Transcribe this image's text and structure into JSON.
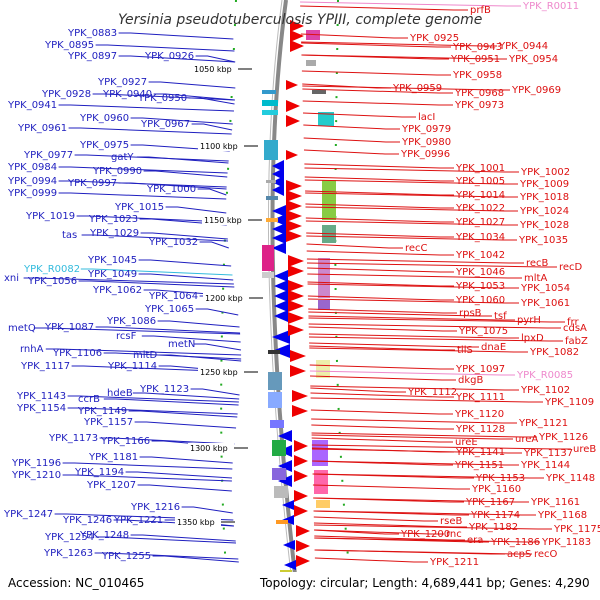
{
  "header": {
    "title": "Yersinia pseudotuberculosis YPIII, complete genome"
  },
  "footer": {
    "accession": "Accession: NC_010465",
    "topology": "Topology: circular; Length: 4,689,441 bp; Genes: 4,290"
  },
  "colors": {
    "left_label": "#1f1fbf",
    "left_arrow": "#0000ee",
    "left_rna": "#33bbdd",
    "right_label": "#dd1111",
    "right_arrow": "#ee0000",
    "right_rna": "#ee88cc",
    "backbone": "#888888"
  },
  "ruler": {
    "ticks": [
      {
        "label": "1050 kbp"
      },
      {
        "label": "1100 kbp"
      },
      {
        "label": "1150 kbp"
      },
      {
        "label": "1200 kbp"
      },
      {
        "label": "1250 kbp"
      },
      {
        "label": "1300 kbp"
      },
      {
        "label": "1350 kbp"
      }
    ]
  },
  "left_genes": [
    "YPK_0883",
    "YPK_0895",
    "YPK_0897",
    "YPK_0926",
    "YPK_0927",
    "YPK_0928",
    "YPK_0940",
    "YPK_0941",
    "YPK_0950",
    "YPK_0960",
    "YPK_0961",
    "YPK_0967",
    "YPK_0975",
    "YPK_0977",
    "gatY",
    "YPK_0984",
    "YPK_0990",
    "YPK_0994",
    "YPK_0997",
    "YPK_0999",
    "YPK_1000",
    "YPK_1015",
    "YPK_1019",
    "YPK_1023",
    "tas",
    "YPK_1029",
    "YPK_1032",
    "YPK_1045",
    "YPK_R0082",
    "YPK_1049",
    "xni",
    "YPK_1056",
    "YPK_1062",
    "YPK_1064",
    "YPK_1065",
    "YPK_1086",
    "metQ",
    "YPK_1087",
    "rcsF",
    "metN",
    "mltD",
    "rnhA",
    "YPK_1106",
    "YPK_1114",
    "YPK_1117",
    "YPK_1123",
    "YPK_1143",
    "ccrB",
    "hdeB",
    "YPK_1154",
    "YPK_1149",
    "YPK_1157",
    "YPK_1166",
    "YPK_1173",
    "YPK_1181",
    "YPK_1196",
    "YPK_1194",
    "YPK_1210",
    "YPK_1207",
    "YPK_1216",
    "YPK_1247",
    "YPK_1246",
    "YPK_1221",
    "YPK_1248",
    "YPK_1254",
    "YPK_1263",
    "YPK_1255"
  ],
  "right_genes": [
    "prfB",
    "YPK_R0011",
    "YPK_0925",
    "YPK_0943",
    "YPK_0944",
    "YPK_0951",
    "YPK_0954",
    "YPK_0958",
    "YPK_0959",
    "YPK_0968",
    "YPK_0969",
    "YPK_0973",
    "lacI",
    "YPK_0979",
    "YPK_0980",
    "YPK_0996",
    "YPK_1001",
    "YPK_1002",
    "YPK_1005",
    "YPK_1009",
    "YPK_1014",
    "YPK_1018",
    "YPK_1022",
    "YPK_1024",
    "YPK_1027",
    "YPK_1028",
    "YPK_1034",
    "YPK_1035",
    "recC",
    "YPK_1042",
    "recB",
    "recD",
    "YPK_1046",
    "mltA",
    "YPK_1053",
    "YPK_1054",
    "YPK_1060",
    "YPK_1061",
    "rpsB",
    "tsf",
    "pyrH",
    "frr",
    "cdsA",
    "YPK_1075",
    "lpxD",
    "fabZ",
    "tilS",
    "dnaE",
    "YPK_1082",
    "YPK_1097",
    "YPK_R0085",
    "dkgB",
    "YPK_1102",
    "YPK_1112",
    "YPK_1111",
    "YPK_1109",
    "YPK_1120",
    "YPK_1121",
    "YPK_1128",
    "YPK_1126",
    "ureE",
    "ureA",
    "YPK_1137",
    "ureB",
    "YPK_1141",
    "YPK_1151",
    "YPK_1144",
    "YPK_1153",
    "YPK_1148",
    "YPK_1160",
    "YPK_1167",
    "YPK_1161",
    "YPK_1174",
    "YPK_1168",
    "rseB",
    "YPK_1182",
    "YPK_1175",
    "rnc",
    "YPK_1200",
    "era",
    "YPK_1186",
    "YPK_1183",
    "acpS",
    "recO",
    "YPK_1211"
  ]
}
